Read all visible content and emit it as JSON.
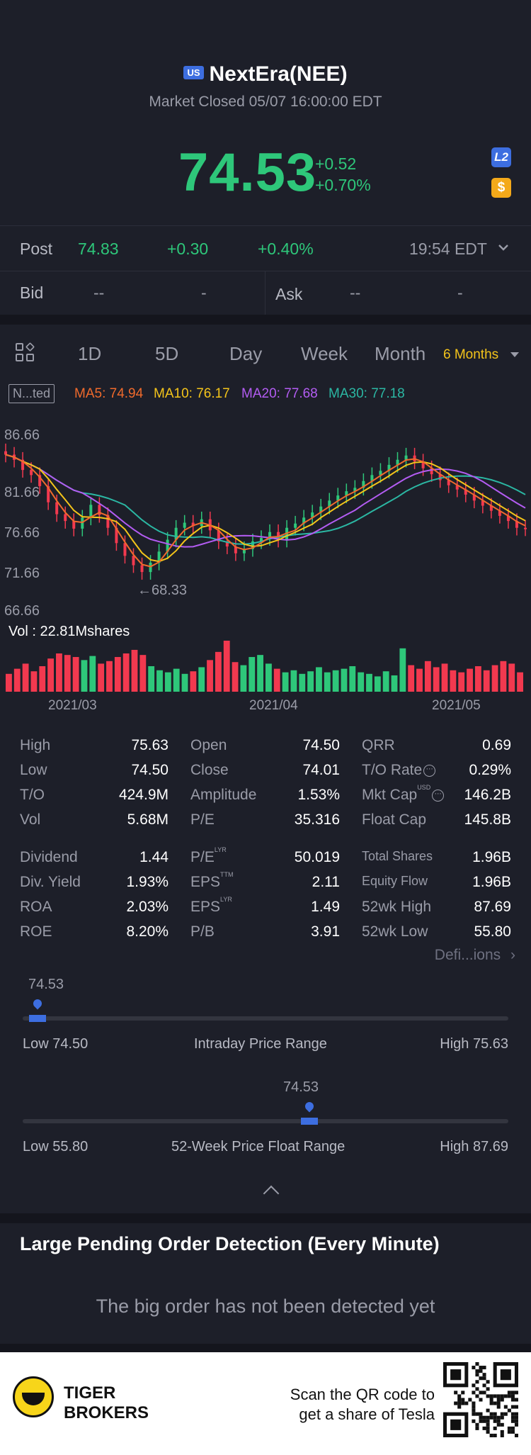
{
  "header": {
    "market_badge": "US",
    "title": "NextEra(NEE)",
    "status": "Market Closed 05/07 16:00:00 EDT",
    "price": "74.53",
    "change": "+0.52",
    "change_pct": "+0.70%",
    "l2_badge": "L2",
    "coin_badge": "$"
  },
  "post": {
    "label": "Post",
    "price": "74.83",
    "change": "+0.30",
    "change_pct": "+0.40%",
    "time": "19:54 EDT"
  },
  "quote": {
    "bid_label": "Bid",
    "bid_price": "--",
    "bid_size": "-",
    "ask_label": "Ask",
    "ask_price": "--",
    "ask_size": "-"
  },
  "tabs": [
    {
      "label": "1D"
    },
    {
      "label": "5D"
    },
    {
      "label": "Day"
    },
    {
      "label": "Week"
    },
    {
      "label": "Month"
    },
    {
      "label": "6 Months"
    }
  ],
  "indicators": {
    "mode": "N...ted",
    "ma5": "MA5: 74.94",
    "ma10": "MA10: 76.17",
    "ma20": "MA20: 77.68",
    "ma30": "MA30: 77.18",
    "colors": {
      "ma5": "#f06a2c",
      "ma10": "#f4c41a",
      "ma20": "#b35cf2",
      "ma30": "#2bb7a3",
      "up": "#2ec77a",
      "down": "#f2394f"
    }
  },
  "chart_data": {
    "type": "candlestick",
    "y_ticks": [
      "86.66",
      "81.66",
      "76.66",
      "71.66",
      "66.66"
    ],
    "ylim": [
      66.66,
      86.66
    ],
    "min_marker": "←68.33",
    "volume_label": "Vol  : 22.81Mshares",
    "x_ticks": [
      "2021/03",
      "2021/04",
      "2021/05"
    ],
    "closes": [
      83.2,
      82.6,
      81.4,
      80.8,
      79.5,
      77.6,
      76.2,
      75.4,
      74.5,
      75.8,
      77.3,
      76.1,
      74.6,
      72.8,
      71.3,
      70.2,
      69.4,
      70.5,
      71.8,
      73.2,
      74.6,
      75.2,
      74.8,
      75.6,
      74.3,
      73.0,
      72.4,
      71.6,
      72.1,
      73.0,
      73.4,
      74.1,
      73.2,
      74.6,
      75.1,
      75.8,
      76.4,
      77.1,
      77.8,
      78.4,
      78.9,
      79.3,
      80.1,
      80.8,
      81.3,
      82.0,
      82.6,
      83.1,
      82.4,
      81.6,
      80.9,
      80.2,
      79.6,
      79.1,
      78.5,
      77.8,
      77.2,
      76.6,
      76.0,
      75.4,
      74.6,
      74.53
    ],
    "volumes": [
      0.35,
      0.45,
      0.55,
      0.4,
      0.5,
      0.65,
      0.75,
      0.72,
      0.68,
      0.62,
      0.7,
      0.55,
      0.6,
      0.68,
      0.75,
      0.82,
      0.72,
      0.5,
      0.42,
      0.38,
      0.45,
      0.35,
      0.4,
      0.48,
      0.62,
      0.78,
      1.0,
      0.58,
      0.52,
      0.68,
      0.72,
      0.55,
      0.45,
      0.38,
      0.42,
      0.35,
      0.4,
      0.48,
      0.38,
      0.42,
      0.45,
      0.5,
      0.38,
      0.35,
      0.3,
      0.4,
      0.32,
      0.85,
      0.52,
      0.45,
      0.6,
      0.48,
      0.55,
      0.42,
      0.38,
      0.45,
      0.5,
      0.42,
      0.52,
      0.6,
      0.55,
      0.38
    ]
  },
  "stats": {
    "col1": [
      {
        "label": "High",
        "value": "75.63"
      },
      {
        "label": "Low",
        "value": "74.50"
      },
      {
        "label": "T/O",
        "value": "424.9M"
      },
      {
        "label": "Vol",
        "value": "5.68M"
      },
      {
        "label": "Dividend",
        "value": "1.44"
      },
      {
        "label": "Div. Yield",
        "value": "1.93%"
      },
      {
        "label": "ROA",
        "value": "2.03%"
      },
      {
        "label": "ROE",
        "value": "8.20%"
      }
    ],
    "col2": [
      {
        "label": "Open",
        "value": "74.50"
      },
      {
        "label": "Close",
        "value": "74.01"
      },
      {
        "label": "Amplitude",
        "value": "1.53%"
      },
      {
        "label": "P/E",
        "value": "35.316"
      },
      {
        "label": "P/E",
        "tag": "LYR",
        "value": "50.019"
      },
      {
        "label": "EPS",
        "tag": "TTM",
        "value": "2.11"
      },
      {
        "label": "EPS",
        "tag": "LYR",
        "value": "1.49"
      },
      {
        "label": "P/B",
        "value": "3.91"
      }
    ],
    "col3": [
      {
        "label": "QRR",
        "value": "0.69"
      },
      {
        "label": "T/O Rate",
        "value": "0.29%"
      },
      {
        "label": "Mkt Cap",
        "tag": "USD",
        "value": "146.2B"
      },
      {
        "label": "Float Cap",
        "value": "145.8B"
      },
      {
        "label": "Total Shares",
        "value": "1.96B"
      },
      {
        "label": "Equity Flow",
        "value": "1.96B"
      },
      {
        "label": "52wk High",
        "value": "87.69"
      },
      {
        "label": "52wk Low",
        "value": "55.80"
      }
    ],
    "definitions_link": "Defi...ions"
  },
  "intraday_range": {
    "value": "74.53",
    "low": "Low 74.50",
    "label": "Intraday Price Range",
    "high": "High 75.63",
    "position": 0.03
  },
  "week52_range": {
    "value": "74.53",
    "low": "Low 55.80",
    "label": "52-Week Price Float Range",
    "high": "High 87.69",
    "position": 0.59
  },
  "large_orders": {
    "title": "Large Pending Order Detection (Every Minute)",
    "empty_message": "The big order has not been detected yet"
  },
  "footer": {
    "brand_line1": "TIGER",
    "brand_line2": "BROKERS",
    "scan_line1": "Scan the QR code to",
    "scan_line2": "get a share of Tesla"
  }
}
